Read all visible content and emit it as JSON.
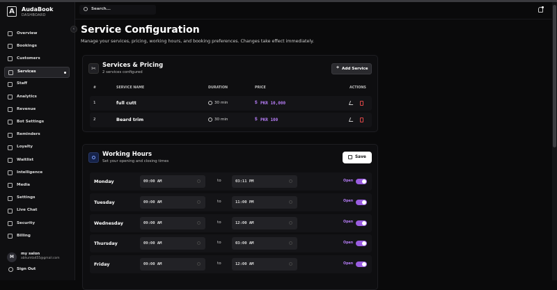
{
  "brand": {
    "logo": "A",
    "name": "AudaBook",
    "sub": "DASHBOARD"
  },
  "search": "Search...",
  "nav": [
    "Overview",
    "Bookings",
    "Customers",
    "Services",
    "Staff",
    "Analytics",
    "Revenue",
    "Bot Settings",
    "Reminders",
    "Loyalty",
    "Waitlist",
    "Intelligence",
    "Media",
    "Settings",
    "Live Chat",
    "Security",
    "Billing"
  ],
  "user": {
    "avatar": "M",
    "name": "my salon",
    "email": "abhumta455@gmail.com"
  },
  "sign_out": "Sign Out",
  "header": {
    "title": "Service Configuration",
    "subtitle": "Manage your services, pricing, working hours, and booking preferences. Changes take effect immediately."
  },
  "services": {
    "title": "Services & Pricing",
    "subtitle": "2 services configured",
    "button": "Add Service",
    "columns": [
      "#",
      "SERVICE NAME",
      "DURATION",
      "PRICE",
      "ACTIONS"
    ],
    "rows": [
      [
        "1",
        "full cutt",
        "30 min",
        "PKR 10,000"
      ],
      [
        "2",
        "Beard trim",
        "30 min",
        "PKR 100"
      ]
    ]
  },
  "hours": {
    "title": "Working Hours",
    "subtitle": "Set your opening and closing times",
    "button": "Save",
    "separator": "to",
    "rows": [
      {
        "day": "Monday",
        "open": "09:00 AM",
        "close": "03:11 PM",
        "status": "Open"
      },
      {
        "day": "Tuesday",
        "open": "09:00 AM",
        "close": "11:00 PM",
        "status": "Open"
      },
      {
        "day": "Wednesday",
        "open": "09:00 AM",
        "close": "12:00 AM",
        "status": "Open"
      },
      {
        "day": "Thursday",
        "open": "09:00 AM",
        "close": "03:00 AM",
        "status": "Open"
      },
      {
        "day": "Friday",
        "open": "09:00 AM",
        "close": "12:00 AM",
        "status": "Open"
      }
    ]
  }
}
